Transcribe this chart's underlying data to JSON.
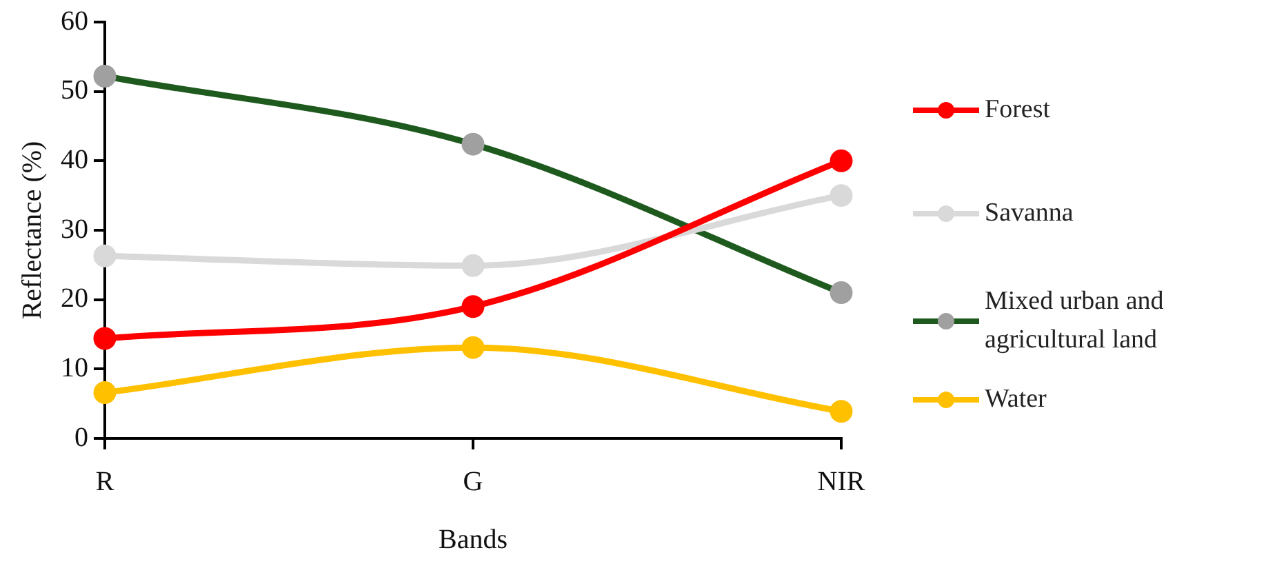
{
  "chart_data": {
    "type": "line",
    "xlabel": "Bands",
    "ylabel": "Reflectance (%)",
    "categories": [
      "R",
      "G",
      "NIR"
    ],
    "ylim": [
      0,
      60
    ],
    "yticks": [
      0,
      10,
      20,
      30,
      40,
      50,
      60
    ],
    "grid": false,
    "legend": "right",
    "marker": "circle",
    "line_style": "solid",
    "series": [
      {
        "name": "Forest",
        "color": "#ff0000",
        "values": [
          14.4,
          19.0,
          40.0
        ]
      },
      {
        "name": "Savanna",
        "color": "#d9d9d9",
        "values": [
          26.3,
          24.9,
          35.0
        ]
      },
      {
        "name": "Mixed urban and agricultural land",
        "color": "#1e5a1e",
        "colors": [
          "#a0a0a0",
          "#a0a0a0",
          "#a0a0a0"
        ],
        "values": [
          52.2,
          42.4,
          21.0
        ]
      },
      {
        "name": "Water",
        "color": "#ffc000",
        "values": [
          6.6,
          13.1,
          3.9
        ]
      }
    ]
  }
}
